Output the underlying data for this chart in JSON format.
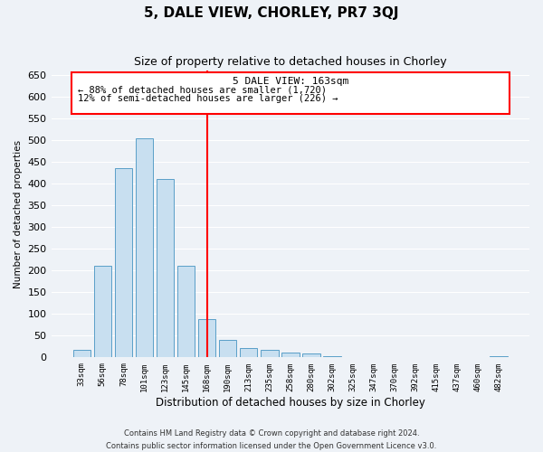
{
  "title": "5, DALE VIEW, CHORLEY, PR7 3QJ",
  "subtitle": "Size of property relative to detached houses in Chorley",
  "xlabel": "Distribution of detached houses by size in Chorley",
  "ylabel": "Number of detached properties",
  "bar_labels": [
    "33sqm",
    "56sqm",
    "78sqm",
    "101sqm",
    "123sqm",
    "145sqm",
    "168sqm",
    "190sqm",
    "213sqm",
    "235sqm",
    "258sqm",
    "280sqm",
    "302sqm",
    "325sqm",
    "347sqm",
    "370sqm",
    "392sqm",
    "415sqm",
    "437sqm",
    "460sqm",
    "482sqm"
  ],
  "bar_values": [
    18,
    210,
    435,
    505,
    410,
    210,
    88,
    40,
    22,
    18,
    12,
    10,
    3,
    0,
    0,
    0,
    0,
    0,
    0,
    0,
    2
  ],
  "bar_color": "#c8dff0",
  "bar_edge_color": "#5a9fc8",
  "vline_x_index": 6,
  "vline_color": "red",
  "ylim": [
    0,
    660
  ],
  "yticks": [
    0,
    50,
    100,
    150,
    200,
    250,
    300,
    350,
    400,
    450,
    500,
    550,
    600,
    650
  ],
  "annotation_title": "5 DALE VIEW: 163sqm",
  "annotation_line1": "← 88% of detached houses are smaller (1,720)",
  "annotation_line2": "12% of semi-detached houses are larger (226) →",
  "box_edge_color": "red",
  "footnote1": "Contains HM Land Registry data © Crown copyright and database right 2024.",
  "footnote2": "Contains public sector information licensed under the Open Government Licence v3.0.",
  "bg_color": "#eef2f7",
  "grid_color": "#ffffff"
}
